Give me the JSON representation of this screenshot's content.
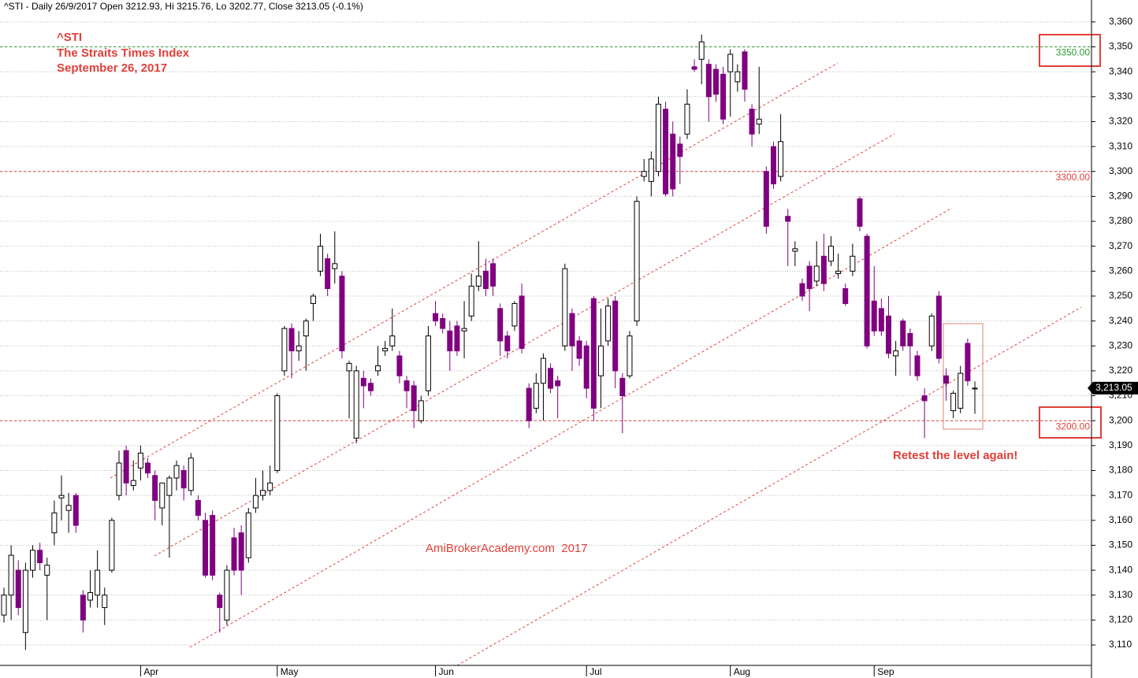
{
  "chart_data": {
    "type": "candlestick",
    "header": "^STI - Daily 26/9/2017 Open 3212.93, Hi 3215.76, Lo 3202.77, Close 3213.05 (-0.1%)",
    "annotations": [
      "^STI",
      "The Straits Times Index",
      "September 26, 2017",
      "AmiBrokerAcademy.com  2017",
      "Retest the level again!"
    ],
    "categories": [
      null,
      null,
      null,
      null,
      null,
      null,
      null,
      null,
      null,
      null,
      null,
      null,
      null,
      null,
      null,
      null,
      null,
      null,
      null,
      "Apr",
      null,
      null,
      null,
      null,
      null,
      null,
      null,
      null,
      null,
      null,
      null,
      null,
      null,
      null,
      null,
      null,
      null,
      null,
      "May",
      null,
      null,
      null,
      null,
      null,
      null,
      null,
      null,
      null,
      null,
      null,
      null,
      null,
      null,
      null,
      null,
      null,
      null,
      null,
      null,
      null,
      "Jun",
      null,
      null,
      null,
      null,
      null,
      null,
      null,
      null,
      null,
      null,
      null,
      null,
      null,
      null,
      null,
      null,
      null,
      null,
      null,
      null,
      "Jul",
      null,
      null,
      null,
      null,
      null,
      null,
      null,
      null,
      null,
      null,
      null,
      null,
      null,
      null,
      null,
      null,
      null,
      null,
      null,
      "Aug",
      null,
      null,
      null,
      null,
      null,
      null,
      null,
      null,
      null,
      null,
      null,
      null,
      null,
      null,
      null,
      null,
      null,
      null,
      null,
      "Sep",
      null,
      null,
      null,
      null,
      null,
      null,
      null,
      null,
      null,
      null,
      null,
      null,
      null,
      null
    ],
    "open": [
      3122,
      3130,
      3140,
      3115,
      3140,
      3148,
      3138,
      3155,
      3169,
      3164,
      3170,
      3130,
      3128,
      3130,
      3125,
      3140,
      3170,
      3188,
      3174,
      3181,
      3183,
      3178,
      3165,
      3170,
      3177,
      3180,
      3172,
      3168,
      3160,
      3162,
      3130,
      3120,
      3153,
      3155,
      3145,
      3165,
      3170,
      3172,
      3180,
      3220,
      3237,
      3228,
      3234,
      3247,
      3260,
      3265,
      3261,
      3258,
      3220,
      3193,
      3217,
      3215,
      3220,
      3228,
      3230,
      3226,
      3216,
      3214,
      3200,
      3212,
      3243,
      3241,
      3236,
      3238,
      3236,
      3242,
      3254,
      3260,
      3263,
      3245,
      3234,
      3238,
      3250,
      3213,
      3205,
      3215,
      3221,
      3216,
      3230,
      3243,
      3232,
      3230,
      3249,
      3218,
      3232,
      3248,
      3217,
      3218,
      3240,
      3298,
      3296,
      3300,
      3325,
      3315,
      3311,
      3315,
      3342,
      3345,
      3343,
      3341,
      3339,
      3340,
      3336,
      3348,
      3325,
      3319,
      3300,
      3310,
      3298,
      3282,
      3268,
      3255,
      3262,
      3256,
      3266,
      3264,
      3259,
      3253,
      3260,
      3289,
      3274,
      3248,
      3245,
      3242,
      3226,
      3240,
      3235,
      3226,
      3210,
      3230,
      3250,
      3218,
      3204,
      3205,
      3231,
      3212.93
    ],
    "high": [
      3133,
      3150,
      3144,
      3143,
      3150,
      3151,
      3145,
      3168,
      3178,
      3171,
      3171,
      3132,
      3140,
      3148,
      3133,
      3161,
      3188,
      3190,
      3184,
      3190,
      3185,
      3180,
      3175,
      3178,
      3184,
      3182,
      3187,
      3170,
      3163,
      3164,
      3131,
      3142,
      3157,
      3158,
      3165,
      3177,
      3180,
      3182,
      3211,
      3238,
      3239,
      3236,
      3241,
      3251,
      3275,
      3267,
      3276,
      3260,
      3224,
      3222,
      3220,
      3217,
      3230,
      3232,
      3245,
      3228,
      3218,
      3216,
      3210,
      3238,
      3248,
      3243,
      3240,
      3240,
      3248,
      3259,
      3272,
      3265,
      3265,
      3247,
      3236,
      3248,
      3255,
      3215,
      3219,
      3227,
      3223,
      3218,
      3263,
      3245,
      3234,
      3232,
      3250,
      3245,
      3249,
      3250,
      3219,
      3236,
      3290,
      3305,
      3308,
      3330,
      3328,
      3320,
      3314,
      3333,
      3345,
      3355,
      3345,
      3343,
      3342,
      3349,
      3343,
      3349,
      3327,
      3342,
      3302,
      3312,
      3323,
      3285,
      3272,
      3257,
      3264,
      3272,
      3275,
      3274,
      3267,
      3255,
      3271,
      3290,
      3275,
      3262,
      3249,
      3250,
      3232,
      3241,
      3237,
      3228,
      3213,
      3243,
      3252,
      3221,
      3212,
      3222,
      3233,
      3215.76
    ],
    "low": [
      3119,
      3120,
      3122,
      3108,
      3137,
      3140,
      3120,
      3150,
      3160,
      3155,
      3155,
      3115,
      3125,
      3125,
      3118,
      3139,
      3168,
      3170,
      3172,
      3176,
      3177,
      3160,
      3158,
      3145,
      3172,
      3168,
      3170,
      3160,
      3137,
      3136,
      3115,
      3118,
      3138,
      3130,
      3143,
      3163,
      3168,
      3170,
      3179,
      3218,
      3217,
      3224,
      3220,
      3240,
      3258,
      3250,
      3255,
      3225,
      3201,
      3191,
      3205,
      3210,
      3218,
      3226,
      3228,
      3215,
      3205,
      3197,
      3199,
      3210,
      3238,
      3235,
      3220,
      3226,
      3225,
      3240,
      3252,
      3250,
      3250,
      3226,
      3225,
      3236,
      3227,
      3197,
      3203,
      3200,
      3211,
      3201,
      3228,
      3220,
      3222,
      3209,
      3200,
      3205,
      3230,
      3213,
      3195,
      3217,
      3238,
      3296,
      3290,
      3298,
      3290,
      3290,
      3295,
      3313,
      3340,
      3335,
      3320,
      3328,
      3319,
      3322,
      3332,
      3328,
      3310,
      3315,
      3275,
      3293,
      3296,
      3262,
      3262,
      3248,
      3244,
      3254,
      3252,
      3262,
      3257,
      3246,
      3258,
      3276,
      3229,
      3234,
      3234,
      3225,
      3218,
      3228,
      3218,
      3216,
      3193,
      3228,
      3223,
      3208,
      3201,
      3203,
      3214,
      3202.77
    ],
    "close": [
      3130,
      3146,
      3125,
      3140,
      3148,
      3143,
      3142,
      3163,
      3170,
      3166,
      3158,
      3120,
      3131,
      3140,
      3130,
      3160,
      3183,
      3175,
      3176,
      3187,
      3179,
      3168,
      3175,
      3177,
      3182,
      3173,
      3185,
      3162,
      3138,
      3138,
      3125,
      3140,
      3140,
      3140,
      3163,
      3170,
      3172,
      3175,
      3210,
      3237,
      3228,
      3230,
      3240,
      3250,
      3270,
      3253,
      3263,
      3228,
      3223,
      3220,
      3214,
      3212,
      3222,
      3229,
      3234,
      3218,
      3212,
      3204,
      3208,
      3234,
      3240,
      3237,
      3228,
      3228,
      3237,
      3254,
      3258,
      3253,
      3254,
      3232,
      3228,
      3247,
      3229,
      3200,
      3215,
      3225,
      3213,
      3214,
      3261,
      3230,
      3225,
      3213,
      3205,
      3230,
      3246,
      3220,
      3210,
      3234,
      3288,
      3300,
      3305,
      3327,
      3291,
      3293,
      3306,
      3327,
      3341,
      3352,
      3330,
      3331,
      3321,
      3347,
      3340,
      3333,
      3315,
      3321,
      3278,
      3295,
      3312,
      3280,
      3269,
      3250,
      3253,
      3262,
      3255,
      3270,
      3260,
      3247,
      3266,
      3278,
      3230,
      3236,
      3236,
      3227,
      3228,
      3230,
      3230,
      3218,
      3208,
      3242,
      3225,
      3215,
      3211,
      3219,
      3216,
      3213.05
    ],
    "up_color": "#ffffff",
    "down_color": "#800080",
    "ylim": [
      3101.8,
      3368.8
    ],
    "yticks": [
      {
        "value": 3110,
        "label": "3,110"
      },
      {
        "value": 3120,
        "label": "3,120"
      },
      {
        "value": 3130,
        "label": "3,130"
      },
      {
        "value": 3140,
        "label": "3,140"
      },
      {
        "value": 3150,
        "label": "3,150"
      },
      {
        "value": 3160,
        "label": "3,160"
      },
      {
        "value": 3170,
        "label": "3,170"
      },
      {
        "value": 3180,
        "label": "3,180"
      },
      {
        "value": 3190,
        "label": "3,190"
      },
      {
        "value": 3200,
        "label": "3,200"
      },
      {
        "value": 3210,
        "label": "3,210"
      },
      {
        "value": 3220,
        "label": "3,220"
      },
      {
        "value": 3230,
        "label": "3,230"
      },
      {
        "value": 3240,
        "label": "3,240"
      },
      {
        "value": 3250,
        "label": "3,250"
      },
      {
        "value": 3260,
        "label": "3,260"
      },
      {
        "value": 3270,
        "label": "3,270"
      },
      {
        "value": 3280,
        "label": "3,280"
      },
      {
        "value": 3290,
        "label": "3,290"
      },
      {
        "value": 3300,
        "label": "3,300"
      },
      {
        "value": 3310,
        "label": "3,310"
      },
      {
        "value": 3320,
        "label": "3,320"
      },
      {
        "value": 3330,
        "label": "3,330"
      },
      {
        "value": 3340,
        "label": "3,340"
      },
      {
        "value": 3350,
        "label": "3,350"
      },
      {
        "value": 3360,
        "label": "3,360"
      }
    ],
    "grid": true,
    "levels": [
      {
        "value": 3350,
        "label": "3350.00",
        "color": "#2e9e2e"
      },
      {
        "value": 3300,
        "label": "3300.00",
        "color": "#e0403a"
      },
      {
        "value": 3200,
        "label": "3200.00",
        "color": "#e0403a"
      }
    ],
    "last_price": {
      "value": 3213.05,
      "label": "3,213.05"
    }
  }
}
